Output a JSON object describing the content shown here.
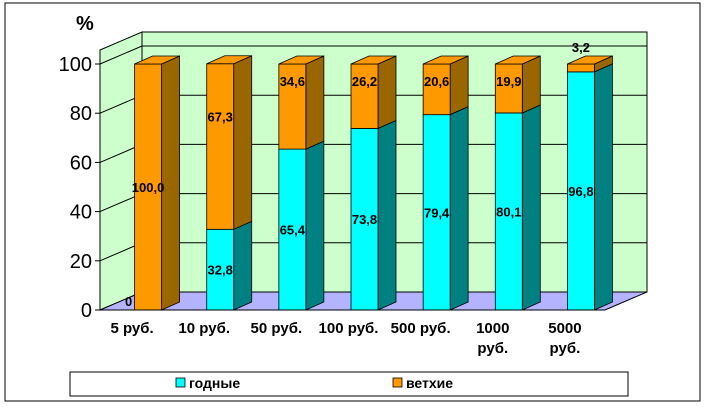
{
  "chart_data": {
    "type": "bar",
    "stacked": true,
    "three_d": true,
    "title": "",
    "xlabel": "",
    "ylabel": "%",
    "ylim": [
      0,
      100
    ],
    "yticks": [
      0,
      20,
      40,
      60,
      80,
      100
    ],
    "grid": true,
    "legend_position": "bottom",
    "categories": [
      [
        "5 руб."
      ],
      [
        "10 руб."
      ],
      [
        "50 руб."
      ],
      [
        "100 руб."
      ],
      [
        "500 руб."
      ],
      [
        "1000",
        "руб."
      ],
      [
        "5000",
        "руб."
      ]
    ],
    "series": [
      {
        "name": "годные",
        "values": [
          0,
          32.8,
          65.4,
          73.8,
          79.4,
          80.1,
          96.8
        ],
        "labels": [
          "0",
          "32,8",
          "65,4",
          "73,8",
          "79,4",
          "80,1",
          "96,8"
        ],
        "color": "#00FFFF",
        "side_color": "#008080"
      },
      {
        "name": "ветхие",
        "values": [
          100.0,
          67.3,
          34.6,
          26.2,
          20.6,
          19.9,
          3.2
        ],
        "labels": [
          "100,0",
          "67,3",
          "34,6",
          "26,2",
          "20,6",
          "19,9",
          "3,2"
        ],
        "color": "#FF9900",
        "side_color": "#996600"
      }
    ],
    "colors": {
      "back_wall": "#CCFFCC",
      "floor": "#B3B3FF",
      "gridline": "#000000"
    }
  }
}
